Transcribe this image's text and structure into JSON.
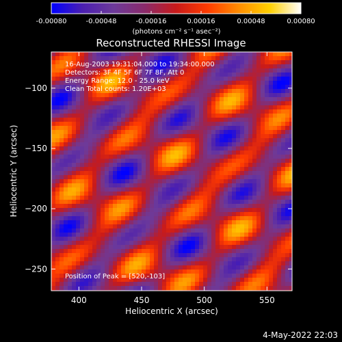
{
  "chart_data": {
    "type": "heatmap",
    "title": "Reconstructed RHESSI Image",
    "xlabel": "Heliocentric X (arcsec)",
    "ylabel": "Heliocentric Y (arcsec)",
    "xlim": [
      378,
      570
    ],
    "ylim": [
      -268,
      -70
    ],
    "x_ticks": [
      400,
      450,
      500,
      550
    ],
    "y_ticks": [
      -100,
      -150,
      -200,
      -250
    ],
    "colorbar": {
      "min": -0.0008,
      "max": 0.0008,
      "ticks": [
        "-0.00080",
        "-0.00048",
        "-0.00016",
        "0.00016",
        "0.00048",
        "0.00080"
      ],
      "unit_label": "(photons cm⁻² s⁻¹ asec⁻²)"
    },
    "annotations": [
      "16-Aug-2003 19:31:04.000 to 19:34:00.000",
      "Detectors: 3F 4F 5F 6F 7F 8F, Att 0",
      "Energy Range: 12.0 - 25.0 keV",
      "Clean     Total counts: 1.20E+03"
    ],
    "peak_label": "Position of Peak = [520,-103]",
    "peak": [
      520,
      -103
    ],
    "footer_date": "4-May-2022 22:03"
  },
  "colors": {
    "background": "#000000",
    "text": "#ffffff",
    "colormap": [
      "#0000ff",
      "#4b1fb0",
      "#6d3a9a",
      "#8a2a6a",
      "#c81a1a",
      "#ff3b00",
      "#ff8c00",
      "#ffd000",
      "#ffffff"
    ]
  }
}
